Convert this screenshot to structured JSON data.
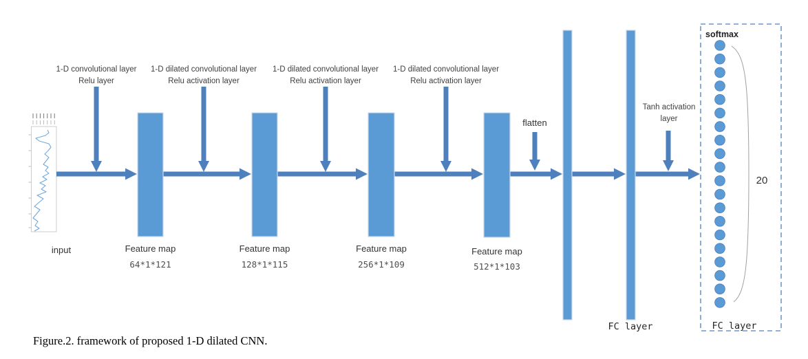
{
  "diagram": {
    "input_label": "input",
    "conv_stages": [
      {
        "line1": "1-D convolutional layer",
        "line2": "Relu layer"
      },
      {
        "line1": "1-D dilated convolutional layer",
        "line2": "Relu activation layer"
      },
      {
        "line1": "1-D dilated convolutional layer",
        "line2": "Relu activation layer"
      },
      {
        "line1": "1-D dilated convolutional layer",
        "line2": "Relu activation layer"
      }
    ],
    "feature_maps": [
      {
        "title": "Feature map",
        "size": "64*1*121"
      },
      {
        "title": "Feature map",
        "size": "128*1*115"
      },
      {
        "title": "Feature map",
        "size": "256*1*109"
      },
      {
        "title": "Feature map",
        "size": "512*1*103"
      }
    ],
    "flatten_label": "flatten",
    "fc_layer_label": "FC layer",
    "tanh_label": {
      "line1": "Tanh activation",
      "line2": "layer"
    },
    "output_box": {
      "softmax_label": "softmax",
      "node_count_label": "20",
      "output_nodes_count": 20,
      "fc_layer_label": "FC layer"
    }
  },
  "caption": "Figure.2. framework of proposed 1-D dilated CNN.",
  "colors": {
    "shape_fill": "#5b9bd5",
    "arrow_color": "#4e80bd",
    "dash_color": "#4e80bd",
    "node_fill": "#5b9bd5",
    "node_stroke": "#4a7ebb",
    "wave_color": "#6fa8dc",
    "label_color": "#3f3f3f"
  }
}
